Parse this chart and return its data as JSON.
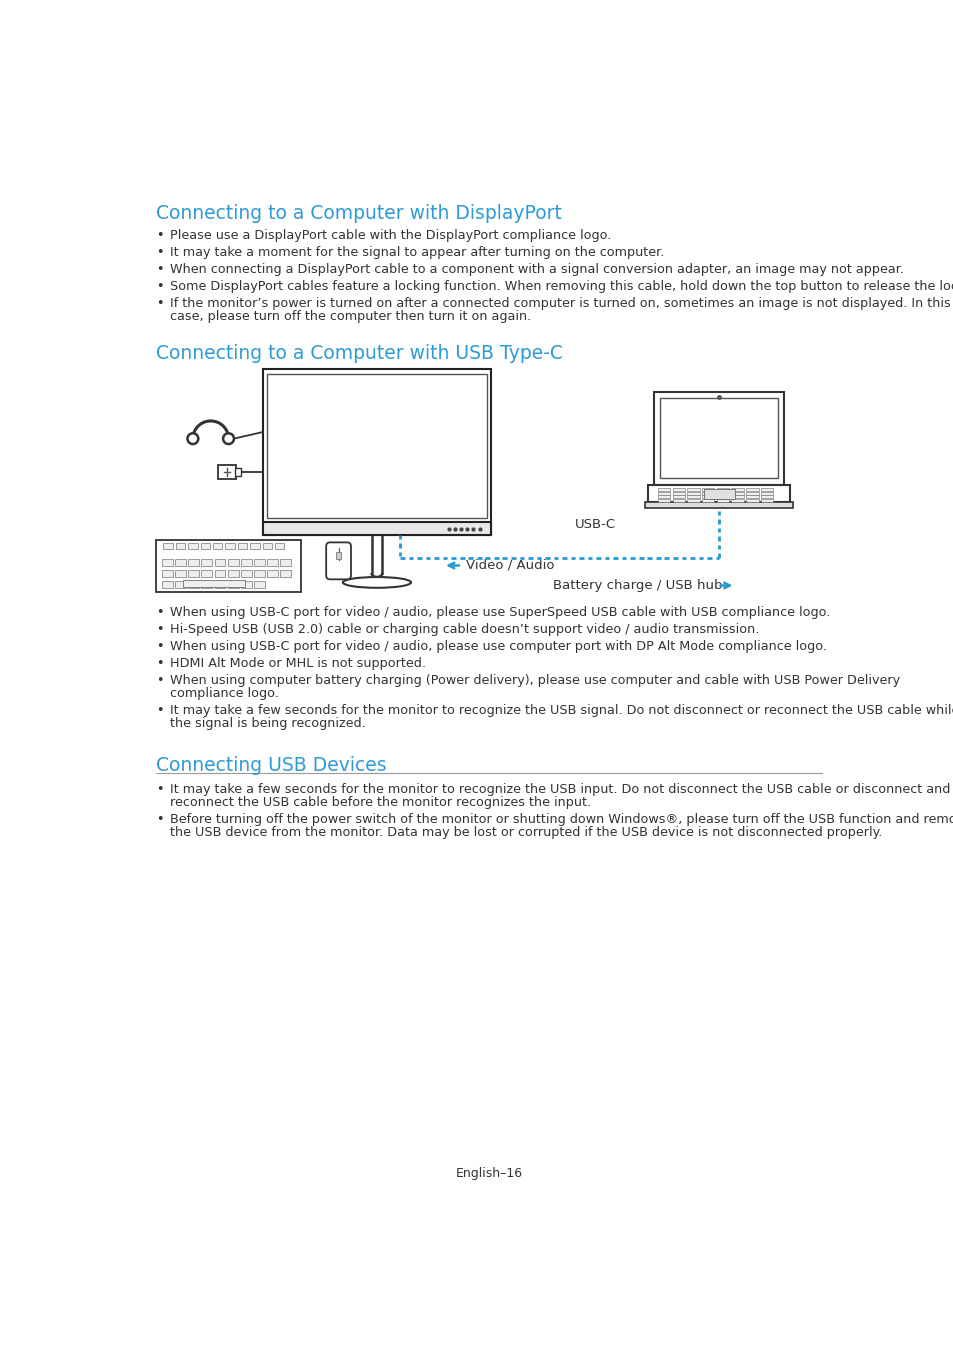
{
  "bg_color": "#ffffff",
  "heading_color": "#2E9BD6",
  "text_color": "#333333",
  "line_color": "#999999",
  "section1_title": "Connecting to a Computer with DisplayPort",
  "section1_bullets": [
    "Please use a DisplayPort cable with the DisplayPort compliance logo.",
    "It may take a moment for the signal to appear after turning on the computer.",
    "When connecting a DisplayPort cable to a component with a signal conversion adapter, an image may not appear.",
    "Some DisplayPort cables feature a locking function. When removing this cable, hold down the top button to release the lock.",
    "If the monitor’s power is turned on after a connected computer is turned on, sometimes an image is not displayed. In this\ncase, please turn off the computer then turn it on again."
  ],
  "section2_title": "Connecting to a Computer with USB Type-C",
  "section2_bullets": [
    "When using USB-C port for video / audio, please use SuperSpeed USB cable with USB compliance logo.",
    "Hi-Speed USB (USB 2.0) cable or charging cable doesn’t support video / audio transmission.",
    "When using USB-C port for video / audio, please use computer port with DP Alt Mode compliance logo.",
    "HDMI Alt Mode or MHL is not supported.",
    "When using computer battery charging (Power delivery), please use computer and cable with USB Power Delivery\ncompliance logo.",
    "It may take a few seconds for the monitor to recognize the USB signal. Do not disconnect or reconnect the USB cable while\nthe signal is being recognized."
  ],
  "section3_title": "Connecting USB Devices",
  "section3_bullets": [
    "It may take a few seconds for the monitor to recognize the USB input. Do not disconnect the USB cable or disconnect and\nreconnect the USB cable before the monitor recognizes the input.",
    "Before turning off the power switch of the monitor or shutting down Windows®, please turn off the USB function and remove\nthe USB device from the monitor. Data may be lost or corrupted if the USB device is not disconnected properly."
  ],
  "footer_text": "English–16"
}
